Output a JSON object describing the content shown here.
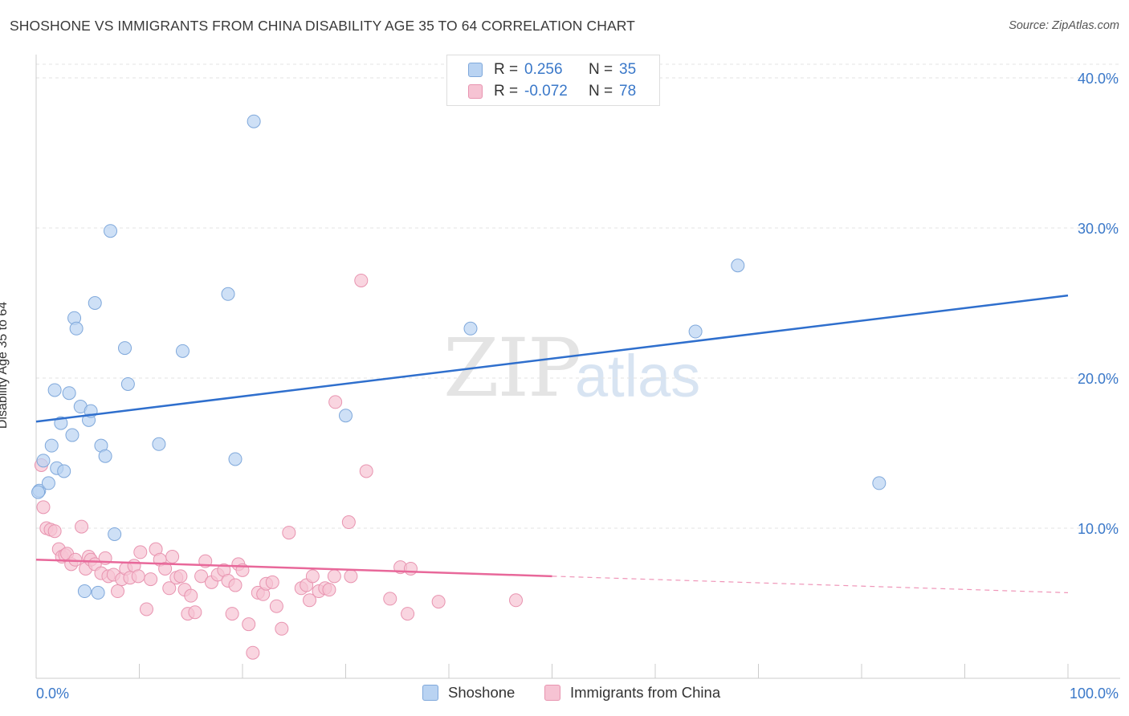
{
  "title": "SHOSHONE VS IMMIGRANTS FROM CHINA DISABILITY AGE 35 TO 64 CORRELATION CHART",
  "source": "Source: ZipAtlas.com",
  "watermark": {
    "zip": "ZIP",
    "atlas": "atlas"
  },
  "legend": {
    "r_label": "R =",
    "n_label": "N =",
    "series": [
      {
        "r": "0.256",
        "n": "35"
      },
      {
        "r": "-0.072",
        "n": "78"
      }
    ]
  },
  "bottom_legend": [
    "Shoshone",
    "Immigrants from China"
  ],
  "colors": {
    "shoshone_fill": "#b9d3f2",
    "shoshone_stroke": "#7fa8db",
    "shoshone_line": "#2f6fcd",
    "china_fill": "#f6c3d3",
    "china_stroke": "#e894b0",
    "china_line": "#e8689a",
    "tick_label": "#3a78c9",
    "grid": "#e3e3e3"
  },
  "chart_data": {
    "type": "scatter",
    "title": "SHOSHONE VS IMMIGRANTS FROM CHINA DISABILITY AGE 35 TO 64 CORRELATION CHART",
    "xlabel": "",
    "ylabel": "Disability Age 35 to 64",
    "xlim": [
      0,
      100
    ],
    "ylim": [
      0,
      40
    ],
    "x_tick_labels": [
      "0.0%",
      "100.0%"
    ],
    "y_ticks": [
      10,
      20,
      30,
      40
    ],
    "y_tick_labels": [
      "10.0%",
      "20.0%",
      "30.0%",
      "40.0%"
    ],
    "grid": true,
    "series": [
      {
        "name": "Shoshone",
        "r": 0.256,
        "n": 35,
        "trend": {
          "x": [
            0,
            100
          ],
          "y": [
            17.1,
            25.5
          ],
          "dashed_from": null
        },
        "points": [
          [
            0.3,
            12.5
          ],
          [
            0.7,
            14.5
          ],
          [
            1.2,
            13.0
          ],
          [
            1.5,
            15.5
          ],
          [
            1.8,
            19.2
          ],
          [
            2.0,
            14.0
          ],
          [
            2.4,
            17.0
          ],
          [
            2.7,
            13.8
          ],
          [
            3.2,
            19.0
          ],
          [
            3.5,
            16.2
          ],
          [
            3.7,
            24.0
          ],
          [
            3.9,
            23.3
          ],
          [
            4.3,
            18.1
          ],
          [
            4.7,
            5.8
          ],
          [
            5.1,
            17.2
          ],
          [
            5.3,
            17.8
          ],
          [
            5.7,
            25.0
          ],
          [
            6.0,
            5.7
          ],
          [
            6.3,
            15.5
          ],
          [
            6.7,
            14.8
          ],
          [
            7.2,
            29.8
          ],
          [
            7.6,
            9.6
          ],
          [
            8.6,
            22.0
          ],
          [
            8.9,
            19.6
          ],
          [
            11.9,
            15.6
          ],
          [
            14.2,
            21.8
          ],
          [
            18.6,
            25.6
          ],
          [
            19.3,
            14.6
          ],
          [
            21.1,
            37.1
          ],
          [
            30.0,
            17.5
          ],
          [
            42.1,
            23.3
          ],
          [
            63.9,
            23.1
          ],
          [
            68.0,
            27.5
          ],
          [
            81.7,
            13.0
          ],
          [
            0.2,
            12.4
          ]
        ]
      },
      {
        "name": "Immigrants from China",
        "r": -0.072,
        "n": 78,
        "trend": {
          "x": [
            0,
            100
          ],
          "y": [
            7.9,
            5.7
          ],
          "dashed_from": 50
        },
        "points": [
          [
            0.5,
            14.2
          ],
          [
            0.7,
            11.4
          ],
          [
            1.0,
            10.0
          ],
          [
            1.4,
            9.9
          ],
          [
            1.8,
            9.8
          ],
          [
            2.2,
            8.6
          ],
          [
            2.5,
            8.1
          ],
          [
            2.8,
            8.2
          ],
          [
            3.0,
            8.3
          ],
          [
            3.4,
            7.6
          ],
          [
            3.8,
            7.9
          ],
          [
            4.4,
            10.1
          ],
          [
            4.8,
            7.3
          ],
          [
            5.1,
            8.1
          ],
          [
            5.3,
            7.9
          ],
          [
            5.7,
            7.6
          ],
          [
            6.3,
            7.0
          ],
          [
            6.7,
            8.0
          ],
          [
            7.0,
            6.8
          ],
          [
            7.5,
            6.9
          ],
          [
            7.9,
            5.8
          ],
          [
            8.3,
            6.6
          ],
          [
            8.7,
            7.3
          ],
          [
            9.1,
            6.7
          ],
          [
            9.5,
            7.5
          ],
          [
            9.9,
            6.8
          ],
          [
            10.1,
            8.4
          ],
          [
            10.7,
            4.6
          ],
          [
            11.1,
            6.6
          ],
          [
            11.6,
            8.6
          ],
          [
            12.0,
            7.9
          ],
          [
            12.5,
            7.3
          ],
          [
            12.9,
            6.0
          ],
          [
            13.2,
            8.1
          ],
          [
            13.6,
            6.7
          ],
          [
            14.0,
            6.8
          ],
          [
            14.4,
            5.9
          ],
          [
            14.7,
            4.3
          ],
          [
            15.0,
            5.5
          ],
          [
            15.4,
            4.4
          ],
          [
            16.0,
            6.8
          ],
          [
            16.4,
            7.8
          ],
          [
            17.0,
            6.4
          ],
          [
            17.6,
            6.9
          ],
          [
            18.2,
            7.2
          ],
          [
            18.6,
            6.5
          ],
          [
            19.0,
            4.3
          ],
          [
            19.3,
            6.2
          ],
          [
            19.6,
            7.6
          ],
          [
            20.0,
            7.2
          ],
          [
            20.6,
            3.6
          ],
          [
            21.0,
            1.7
          ],
          [
            21.5,
            5.7
          ],
          [
            22.0,
            5.6
          ],
          [
            22.3,
            6.3
          ],
          [
            22.9,
            6.4
          ],
          [
            23.3,
            4.8
          ],
          [
            23.8,
            3.3
          ],
          [
            24.5,
            9.7
          ],
          [
            25.7,
            6.0
          ],
          [
            26.2,
            6.2
          ],
          [
            26.5,
            5.2
          ],
          [
            26.8,
            6.8
          ],
          [
            27.4,
            5.8
          ],
          [
            28.0,
            6.0
          ],
          [
            28.4,
            5.9
          ],
          [
            28.9,
            6.8
          ],
          [
            29.0,
            18.4
          ],
          [
            30.3,
            10.4
          ],
          [
            30.5,
            6.8
          ],
          [
            31.5,
            26.5
          ],
          [
            32.0,
            13.8
          ],
          [
            34.3,
            5.3
          ],
          [
            35.3,
            7.4
          ],
          [
            36.0,
            4.3
          ],
          [
            36.3,
            7.3
          ],
          [
            39.0,
            5.1
          ],
          [
            46.5,
            5.2
          ]
        ]
      }
    ]
  }
}
